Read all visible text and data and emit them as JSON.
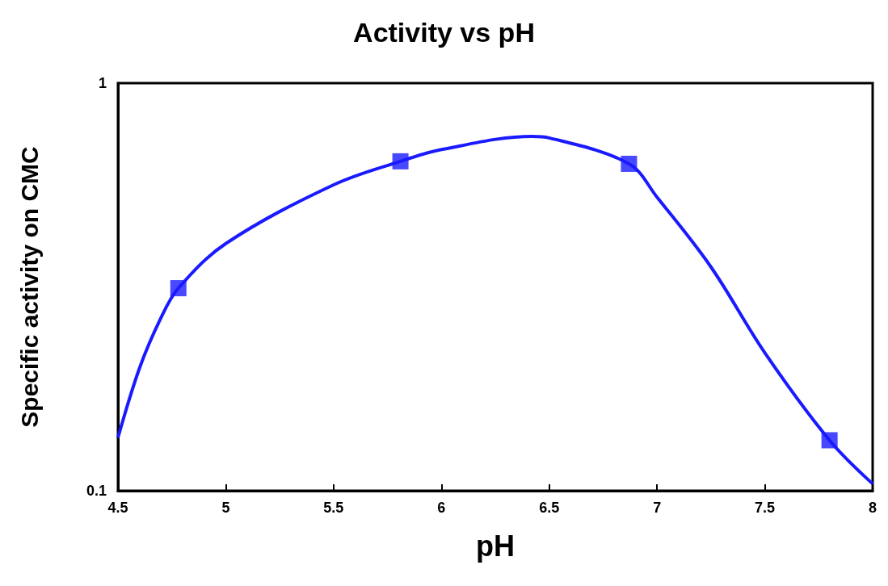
{
  "chart_data": {
    "type": "scatter",
    "title": "Activity vs pH",
    "xlabel": "pH",
    "ylabel": "Specific activity on CMC",
    "log": "y",
    "xlim": [
      4.5,
      8
    ],
    "xticks": [
      4.5,
      5,
      5.5,
      6,
      6.5,
      7,
      7.5,
      8
    ],
    "ylim": [
      0.1,
      1
    ],
    "yticks": [
      0.1,
      1
    ],
    "grid": false,
    "marker": "square",
    "series": [
      {
        "color": "#1a1aff",
        "x": [
          4.78,
          5.81,
          6.87,
          7.8
        ],
        "values": [
          0.314,
          0.643,
          0.634,
          0.133
        ]
      },
      {
        "type": "line",
        "color": "#1a1aff",
        "marker": "none",
        "x": [
          4.5,
          4.6,
          4.7,
          4.78,
          5,
          5.5,
          5.81,
          6,
          6.42,
          6.5,
          6.87,
          7,
          7.25,
          7.5,
          7.8,
          8
        ],
        "values": [
          0.135,
          0.2,
          0.266,
          0.314,
          0.404,
          0.563,
          0.643,
          0.687,
          0.74,
          0.734,
          0.634,
          0.525,
          0.354,
          0.218,
          0.133,
          0.104
        ]
      }
    ]
  }
}
